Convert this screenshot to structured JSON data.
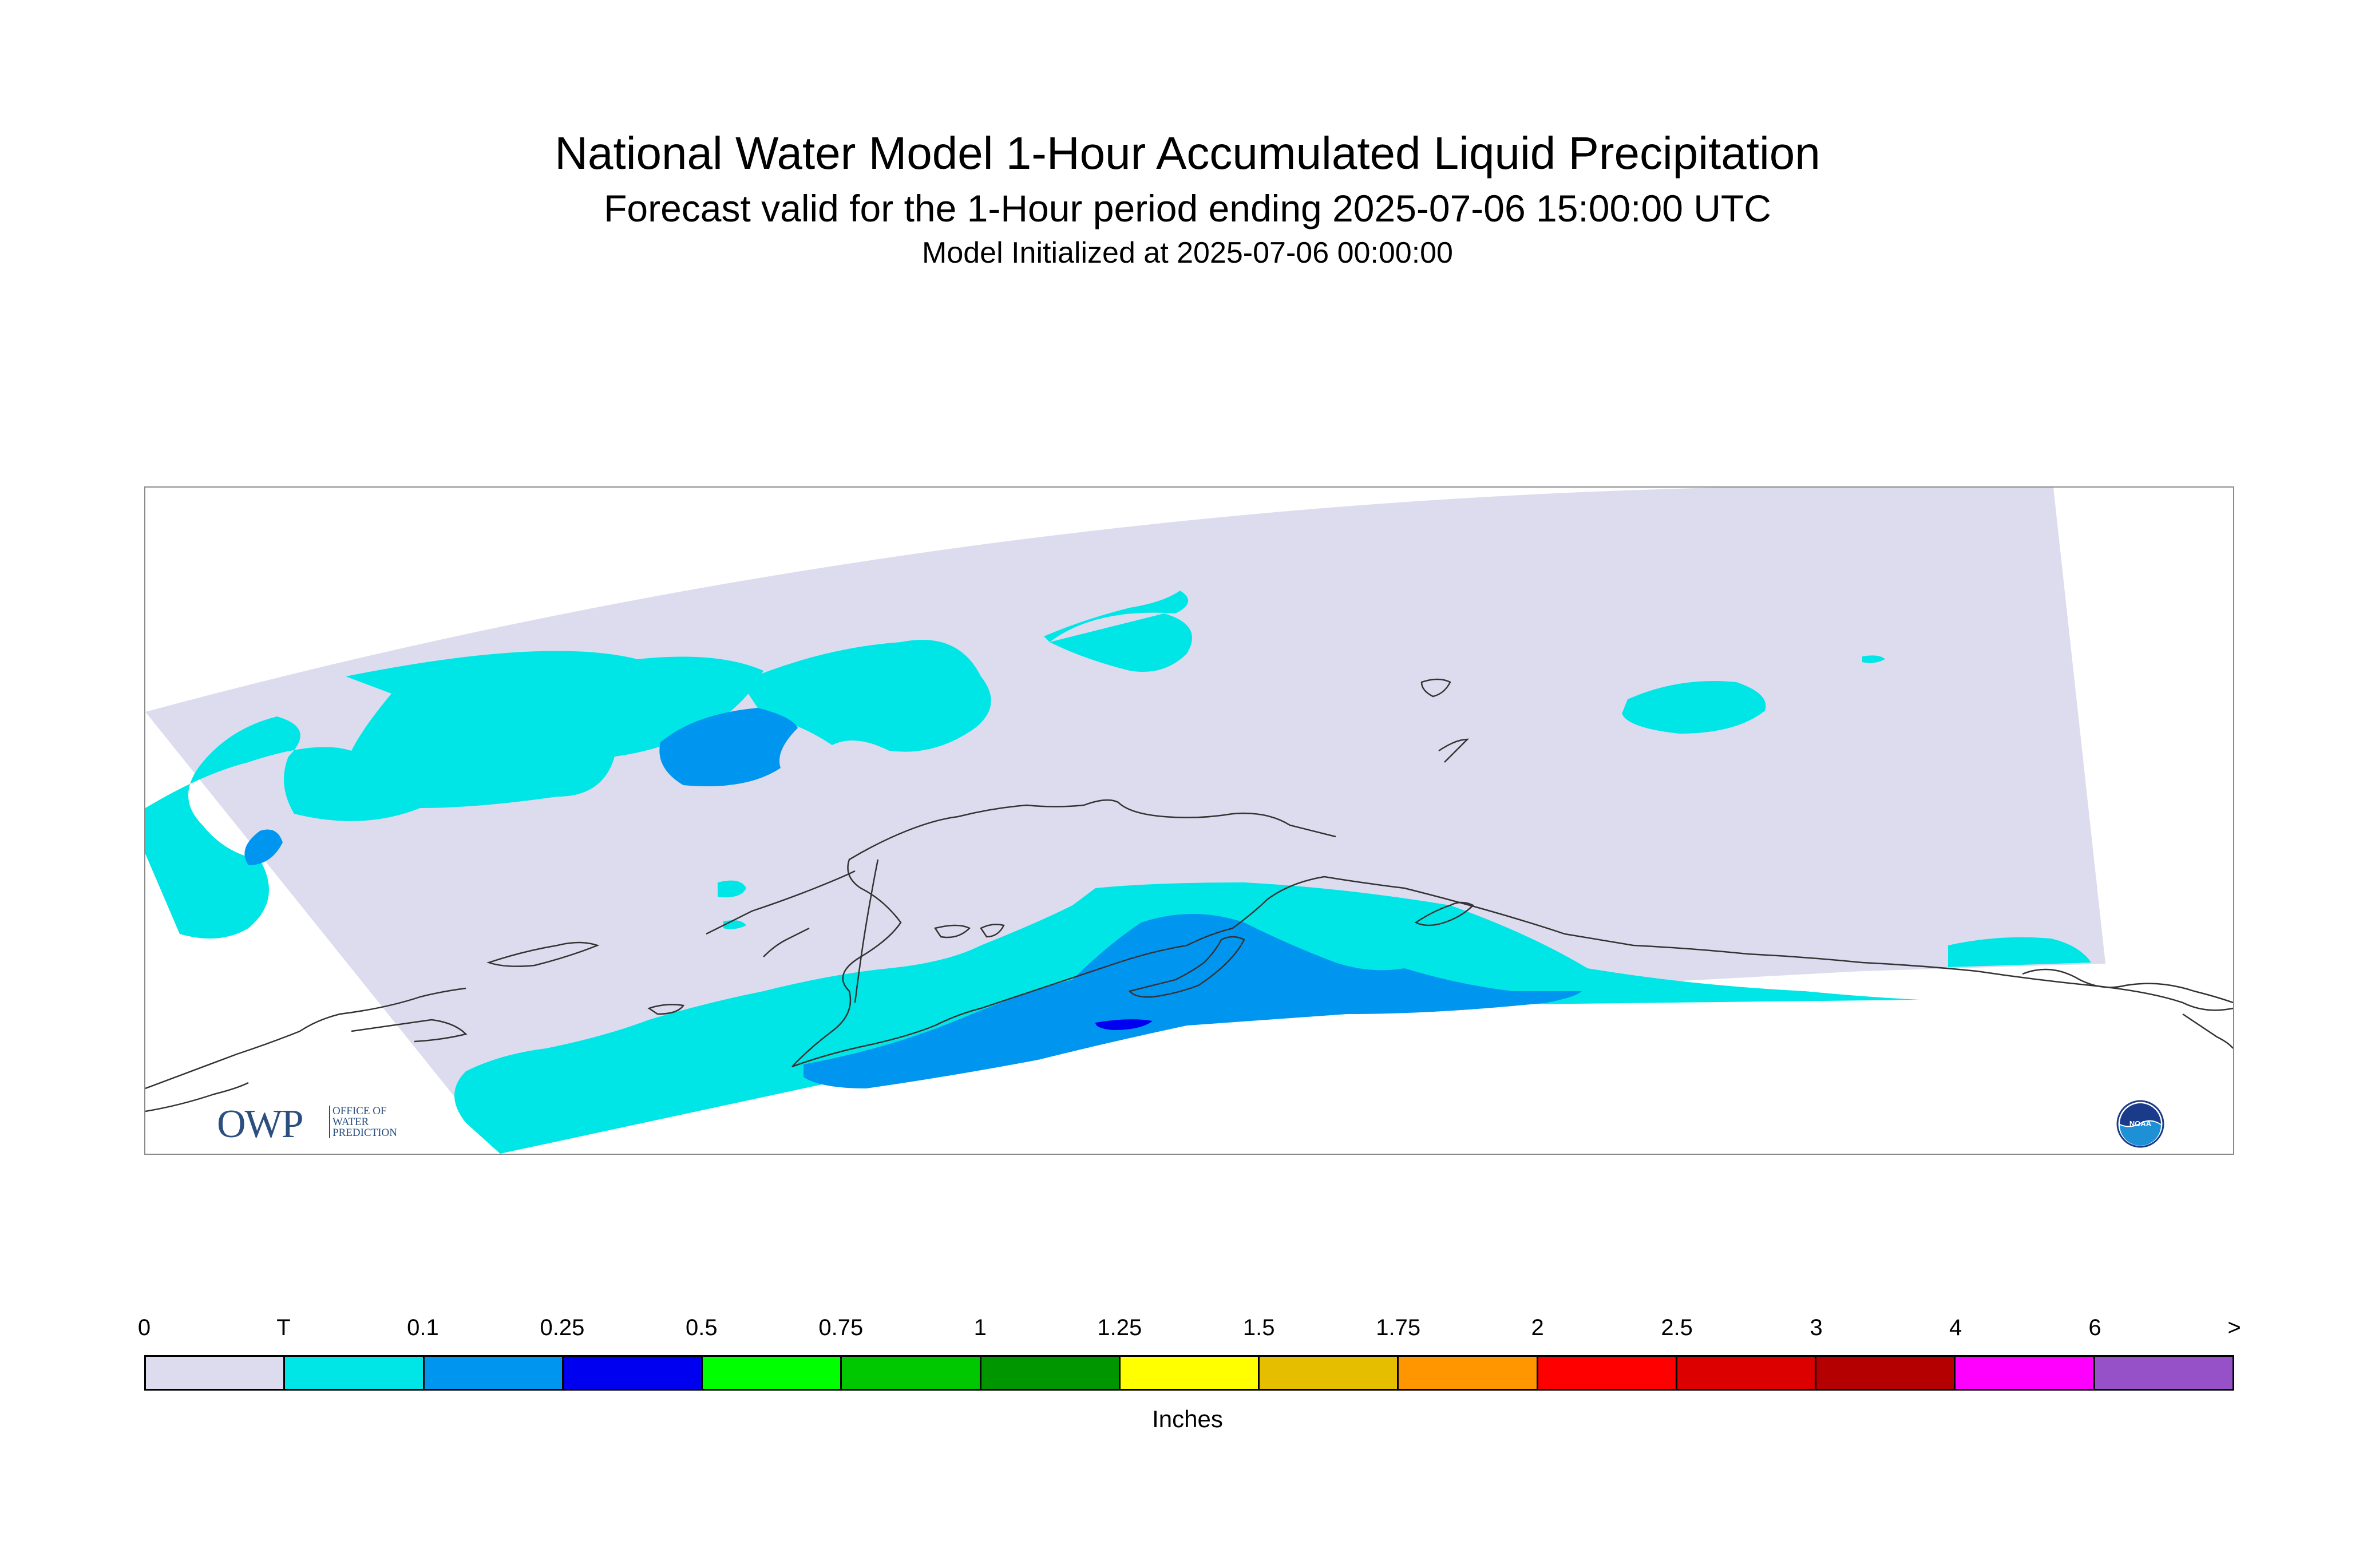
{
  "header": {
    "title": "National Water Model 1-Hour Accumulated Liquid Precipitation",
    "subtitle": "Forecast valid for the 1-Hour period ending 2025-07-06 15:00:00 UTC",
    "initialized": "Model Initialized at 2025-07-06 00:00:00"
  },
  "map": {
    "region": "Alaska",
    "background_color": "#ffffff",
    "domain_color": "#dcdcee",
    "coastline_color": "#333333"
  },
  "logos": {
    "owp_abbrev": "OWP",
    "owp_line1": "OFFICE OF",
    "owp_line2": "WATER",
    "owp_line3": "PREDICTION",
    "noaa_text": "NOAA"
  },
  "colorbar": {
    "labels": [
      "0",
      "T",
      "0.1",
      "0.25",
      "0.5",
      "0.75",
      "1",
      "1.25",
      "1.5",
      "1.75",
      "2",
      "2.5",
      "3",
      "4",
      "6",
      ">"
    ],
    "colors": [
      "#dcdcee",
      "#00e6e6",
      "#0096f0",
      "#0000f0",
      "#00ff00",
      "#00c800",
      "#009600",
      "#ffff00",
      "#e6be00",
      "#ff9600",
      "#ff0000",
      "#dc0000",
      "#b40000",
      "#ff00ff",
      "#9650c8"
    ],
    "units": "Inches"
  }
}
